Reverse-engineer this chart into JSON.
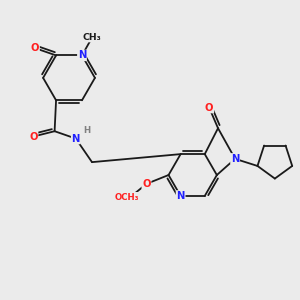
{
  "bg_color": "#ebebeb",
  "bond_color": "#1a1a1a",
  "atom_colors": {
    "N": "#2020ff",
    "O": "#ff2020",
    "C": "#1a1a1a",
    "H": "#808080"
  },
  "font_size": 7.2,
  "bond_width": 1.3,
  "dbo": 0.09
}
